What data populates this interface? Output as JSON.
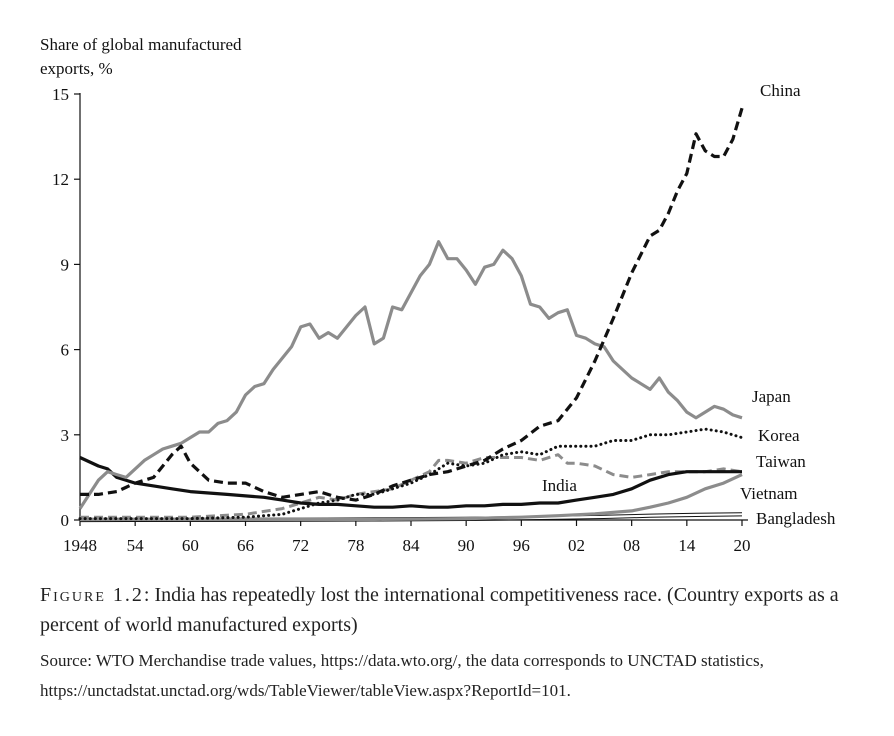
{
  "chart_data": {
    "type": "line",
    "ylabel": "Share of global manufactured exports, %",
    "ylabel_lines": [
      "Share of global manufactured",
      "exports, %"
    ],
    "ylim": [
      0,
      15
    ],
    "yticks": [
      0,
      3,
      6,
      9,
      12,
      15
    ],
    "ytick_labels": [
      "0",
      "3",
      "6",
      "9",
      "12",
      "15"
    ],
    "xlim": [
      1948,
      2020
    ],
    "xticks": [
      1948,
      1954,
      1960,
      1966,
      1972,
      1978,
      1984,
      1990,
      1996,
      2002,
      2008,
      2014,
      2020
    ],
    "xtick_labels": [
      "1948",
      "54",
      "60",
      "66",
      "72",
      "78",
      "84",
      "90",
      "96",
      "02",
      "08",
      "14",
      "20"
    ],
    "series": [
      {
        "name": "Japan",
        "color": "#8c8c8c",
        "style": "solid",
        "width": 3.2,
        "x": [
          1948,
          1949,
          1950,
          1951,
          1952,
          1953,
          1954,
          1955,
          1956,
          1957,
          1958,
          1959,
          1960,
          1961,
          1962,
          1963,
          1964,
          1965,
          1966,
          1967,
          1968,
          1969,
          1970,
          1971,
          1972,
          1973,
          1974,
          1975,
          1976,
          1977,
          1978,
          1979,
          1980,
          1981,
          1982,
          1983,
          1984,
          1985,
          1986,
          1987,
          1988,
          1989,
          1990,
          1991,
          1992,
          1993,
          1994,
          1995,
          1996,
          1997,
          1998,
          1999,
          2000,
          2001,
          2002,
          2003,
          2004,
          2005,
          2006,
          2007,
          2008,
          2009,
          2010,
          2011,
          2012,
          2013,
          2014,
          2015,
          2016,
          2017,
          2018,
          2019,
          2020
        ],
        "y": [
          0.4,
          0.9,
          1.4,
          1.7,
          1.6,
          1.5,
          1.8,
          2.1,
          2.3,
          2.5,
          2.6,
          2.7,
          2.9,
          3.1,
          3.1,
          3.4,
          3.5,
          3.8,
          4.4,
          4.7,
          4.8,
          5.3,
          5.7,
          6.1,
          6.8,
          6.9,
          6.4,
          6.6,
          6.4,
          6.8,
          7.2,
          7.5,
          6.2,
          6.4,
          7.5,
          7.4,
          8.0,
          8.6,
          9.0,
          9.8,
          9.2,
          9.2,
          8.8,
          8.3,
          8.9,
          9.0,
          9.5,
          9.2,
          8.6,
          7.6,
          7.5,
          7.1,
          7.3,
          7.4,
          6.5,
          6.4,
          6.2,
          6.1,
          5.6,
          5.3,
          5.0,
          4.8,
          4.6,
          5.0,
          4.5,
          4.2,
          3.8,
          3.6,
          3.8,
          4.0,
          3.9,
          3.7,
          3.6
        ]
      },
      {
        "name": "China",
        "color": "#111111",
        "style": "dashed",
        "width": 3.2,
        "x": [
          1948,
          1950,
          1952,
          1954,
          1956,
          1958,
          1959,
          1960,
          1962,
          1964,
          1966,
          1968,
          1970,
          1972,
          1974,
          1976,
          1978,
          1980,
          1982,
          1984,
          1986,
          1988,
          1990,
          1992,
          1994,
          1996,
          1998,
          2000,
          2002,
          2004,
          2006,
          2008,
          2010,
          2011,
          2012,
          2013,
          2014,
          2015,
          2016,
          2017,
          2018,
          2019,
          2020
        ],
        "y": [
          0.9,
          0.9,
          1.0,
          1.3,
          1.5,
          2.3,
          2.6,
          2.0,
          1.4,
          1.3,
          1.3,
          1.0,
          0.8,
          0.9,
          1.0,
          0.8,
          0.7,
          0.9,
          1.2,
          1.4,
          1.6,
          1.7,
          1.9,
          2.1,
          2.5,
          2.8,
          3.3,
          3.5,
          4.3,
          5.6,
          7.1,
          8.7,
          10.0,
          10.2,
          10.8,
          11.6,
          12.2,
          13.6,
          13.0,
          12.8,
          12.8,
          13.4,
          14.5
        ]
      },
      {
        "name": "Korea",
        "color": "#111111",
        "style": "dotted",
        "width": 3,
        "x": [
          1948,
          1960,
          1966,
          1970,
          1972,
          1974,
          1976,
          1978,
          1980,
          1982,
          1984,
          1986,
          1988,
          1990,
          1992,
          1994,
          1996,
          1998,
          2000,
          2002,
          2004,
          2006,
          2008,
          2010,
          2012,
          2014,
          2016,
          2018,
          2020
        ],
        "y": [
          0.05,
          0.05,
          0.1,
          0.2,
          0.4,
          0.6,
          0.7,
          0.9,
          0.9,
          1.1,
          1.3,
          1.6,
          2.0,
          1.9,
          2.0,
          2.3,
          2.4,
          2.3,
          2.6,
          2.6,
          2.6,
          2.8,
          2.8,
          3.0,
          3.0,
          3.1,
          3.2,
          3.1,
          2.9
        ]
      },
      {
        "name": "Taiwan",
        "color": "#8c8c8c",
        "style": "dashed",
        "width": 3,
        "x": [
          1948,
          1960,
          1966,
          1970,
          1972,
          1974,
          1976,
          1978,
          1980,
          1982,
          1984,
          1986,
          1987,
          1988,
          1990,
          1992,
          1994,
          1996,
          1998,
          2000,
          2001,
          2002,
          2004,
          2006,
          2008,
          2010,
          2012,
          2014,
          2016,
          2018,
          2020
        ],
        "y": [
          0.1,
          0.1,
          0.2,
          0.4,
          0.6,
          0.8,
          0.7,
          0.9,
          1.0,
          1.1,
          1.4,
          1.7,
          2.1,
          2.1,
          2.0,
          2.2,
          2.2,
          2.2,
          2.1,
          2.3,
          2.0,
          2.0,
          1.9,
          1.6,
          1.5,
          1.6,
          1.7,
          1.7,
          1.7,
          1.8,
          1.7
        ]
      },
      {
        "name": "India",
        "color": "#111111",
        "style": "solid",
        "width": 3.2,
        "x": [
          1948,
          1950,
          1951,
          1952,
          1954,
          1956,
          1958,
          1960,
          1962,
          1964,
          1966,
          1968,
          1970,
          1972,
          1974,
          1976,
          1978,
          1980,
          1982,
          1984,
          1986,
          1988,
          1990,
          1992,
          1994,
          1996,
          1998,
          2000,
          2002,
          2004,
          2006,
          2008,
          2010,
          2012,
          2014,
          2016,
          2018,
          2020
        ],
        "y": [
          2.2,
          1.9,
          1.8,
          1.5,
          1.3,
          1.2,
          1.1,
          1.0,
          0.95,
          0.9,
          0.85,
          0.8,
          0.7,
          0.6,
          0.55,
          0.55,
          0.5,
          0.45,
          0.45,
          0.5,
          0.45,
          0.45,
          0.5,
          0.5,
          0.55,
          0.55,
          0.6,
          0.6,
          0.7,
          0.8,
          0.9,
          1.1,
          1.4,
          1.6,
          1.7,
          1.7,
          1.7,
          1.7
        ]
      },
      {
        "name": "Vietnam",
        "color": "#8c8c8c",
        "style": "solid",
        "width": 3.2,
        "x": [
          1948,
          1980,
          1990,
          1996,
          2000,
          2004,
          2008,
          2010,
          2012,
          2014,
          2016,
          2018,
          2020
        ],
        "y": [
          0.02,
          0.02,
          0.05,
          0.1,
          0.15,
          0.22,
          0.32,
          0.45,
          0.6,
          0.8,
          1.1,
          1.3,
          1.6
        ]
      },
      {
        "name": "Bangladesh",
        "color": "#111111",
        "style": "double",
        "width": 1,
        "x": [
          1948,
          1972,
          1980,
          1990,
          2000,
          2005,
          2010,
          2015,
          2020
        ],
        "y": [
          0.0,
          0.01,
          0.02,
          0.04,
          0.08,
          0.11,
          0.15,
          0.18,
          0.2
        ]
      }
    ]
  },
  "caption": {
    "figure_label": "Figure 1.2",
    "text": ": India has repeatedly lost the international competitiveness race. (Country exports as a percent of world manufactured exports)"
  },
  "source": {
    "text": "Source: WTO Merchandise trade values, https://data.wto.org/, the data corresponds to UNCTAD statistics, https://unctadstat.unctad.org/wds/TableViewer/tableView.aspx?ReportId=101."
  }
}
